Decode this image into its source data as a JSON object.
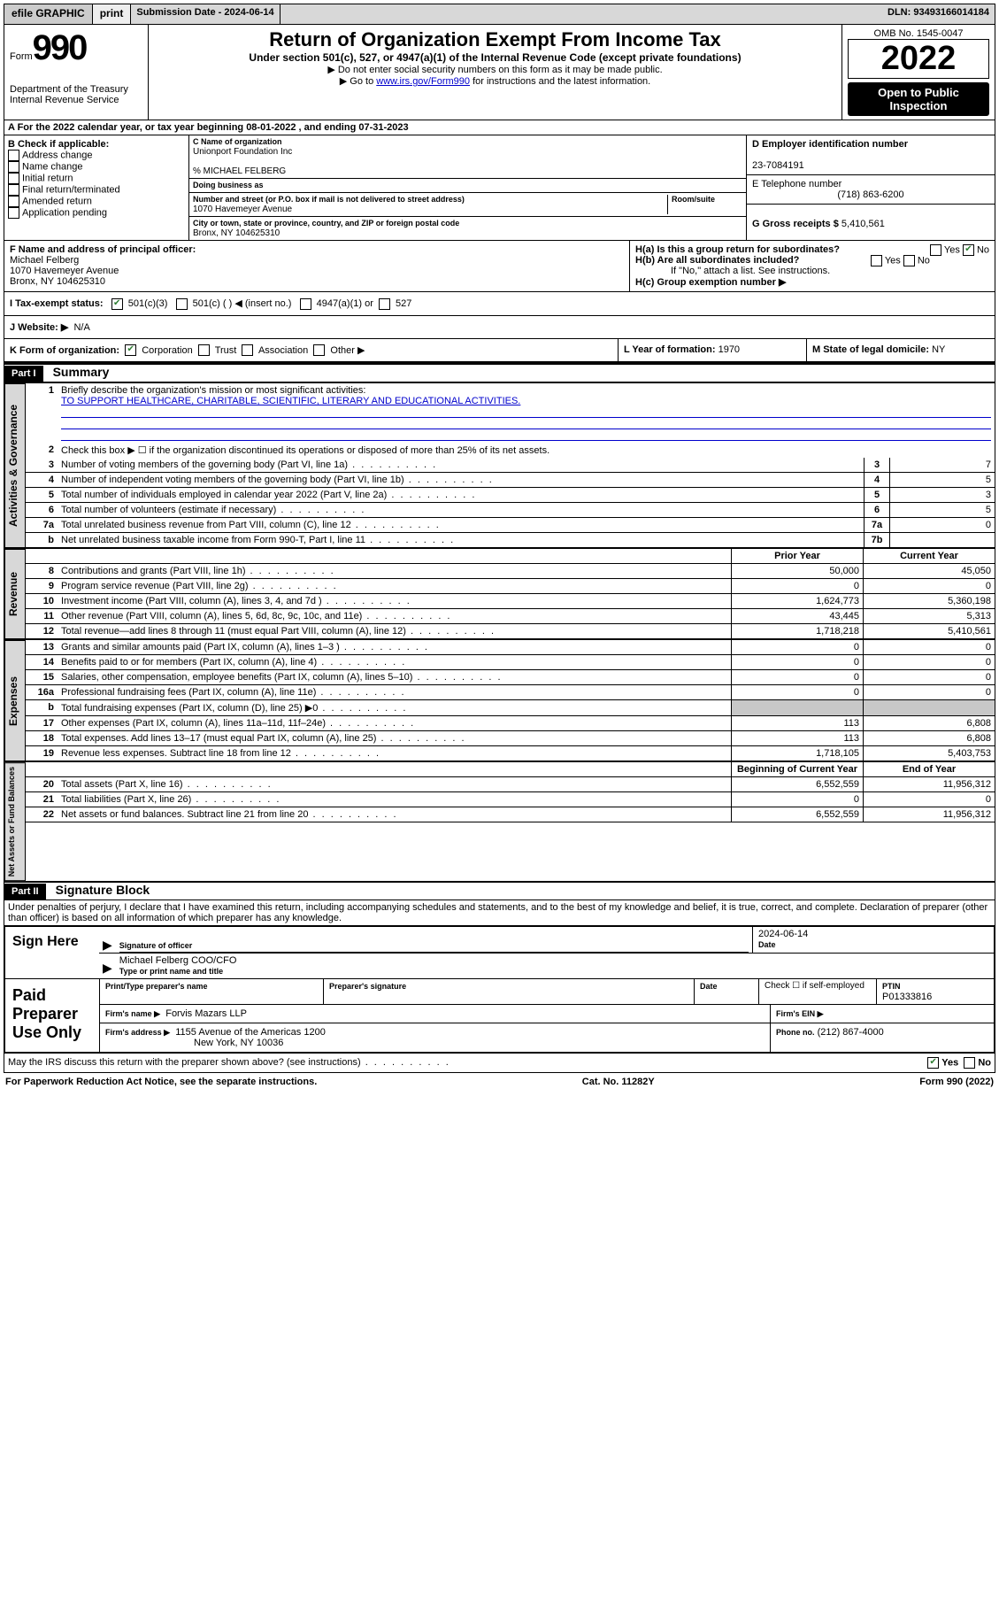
{
  "topbar": {
    "efile": "efile GRAPHIC",
    "print": "print",
    "sub_label": "Submission Date - 2024-06-14",
    "dln": "DLN: 93493166014184"
  },
  "header": {
    "form": "Form",
    "form_no": "990",
    "dept": "Department of the Treasury",
    "irs": "Internal Revenue Service",
    "title": "Return of Organization Exempt From Income Tax",
    "sub": "Under section 501(c), 527, or 4947(a)(1) of the Internal Revenue Code (except private foundations)",
    "note1": "▶ Do not enter social security numbers on this form as it may be made public.",
    "note2_pre": "▶ Go to ",
    "note2_link": "www.irs.gov/Form990",
    "note2_post": " for instructions and the latest information.",
    "omb": "OMB No. 1545-0047",
    "year": "2022",
    "open": "Open to Public Inspection"
  },
  "secA": {
    "line": "A For the 2022 calendar year, or tax year beginning 08-01-2022   , and ending 07-31-2023",
    "b_head": "B Check if applicable:",
    "b_items": [
      "Address change",
      "Name change",
      "Initial return",
      "Final return/terminated",
      "Amended return",
      "Application pending"
    ],
    "c_label": "C Name of organization",
    "c_name": "Unionport Foundation Inc",
    "care_of": "% MICHAEL FELBERG",
    "dba_label": "Doing business as",
    "addr_label": "Number and street (or P.O. box if mail is not delivered to street address)",
    "room_label": "Room/suite",
    "addr": "1070 Havemeyer Avenue",
    "city_label": "City or town, state or province, country, and ZIP or foreign postal code",
    "city": "Bronx, NY  104625310",
    "d_label": "D Employer identification number",
    "d_val": "23-7084191",
    "e_label": "E Telephone number",
    "e_val": "(718) 863-6200",
    "g_label": "G Gross receipts $",
    "g_val": "5,410,561"
  },
  "secFH": {
    "f_label": "F Name and address of principal officer:",
    "f_name": "Michael Felberg",
    "f_addr1": "1070 Havemeyer Avenue",
    "f_addr2": "Bronx, NY  104625310",
    "ha": "H(a)  Is this a group return for subordinates?",
    "hb": "H(b)  Are all subordinates included?",
    "hb_note": "If \"No,\" attach a list. See instructions.",
    "hc": "H(c)  Group exemption number ▶",
    "yes": "Yes",
    "no": "No"
  },
  "secI": {
    "label": "I    Tax-exempt status:",
    "c3": "501(c)(3)",
    "c": "501(c) (  ) ◀ (insert no.)",
    "a1": "4947(a)(1) or",
    "s527": "527"
  },
  "secJ": {
    "label": "J   Website: ▶",
    "val": "N/A"
  },
  "secK": {
    "label": "K Form of organization:",
    "opts": [
      "Corporation",
      "Trust",
      "Association",
      "Other ▶"
    ],
    "l_label": "L Year of formation:",
    "l_val": "1970",
    "m_label": "M State of legal domicile:",
    "m_val": "NY"
  },
  "part1": {
    "bar": "Part I",
    "title": "Summary",
    "q1": "Briefly describe the organization's mission or most significant activities:",
    "mission": "TO SUPPORT HEALTHCARE, CHARITABLE, SCIENTIFIC, LITERARY AND EDUCATIONAL ACTIVITIES.",
    "q2": "Check this box ▶ ☐  if the organization discontinued its operations or disposed of more than 25% of its net assets.",
    "side_gov": "Activities & Governance",
    "side_rev": "Revenue",
    "side_exp": "Expenses",
    "side_net": "Net Assets or Fund Balances",
    "col_prior": "Prior Year",
    "col_curr": "Current Year",
    "col_beg": "Beginning of Current Year",
    "col_end": "End of Year",
    "rows_gov": [
      {
        "n": "3",
        "d": "Number of voting members of the governing body (Part VI, line 1a)",
        "b": "3",
        "v": "7"
      },
      {
        "n": "4",
        "d": "Number of independent voting members of the governing body (Part VI, line 1b)",
        "b": "4",
        "v": "5"
      },
      {
        "n": "5",
        "d": "Total number of individuals employed in calendar year 2022 (Part V, line 2a)",
        "b": "5",
        "v": "3"
      },
      {
        "n": "6",
        "d": "Total number of volunteers (estimate if necessary)",
        "b": "6",
        "v": "5"
      },
      {
        "n": "7a",
        "d": "Total unrelated business revenue from Part VIII, column (C), line 12",
        "b": "7a",
        "v": "0"
      },
      {
        "n": "b",
        "d": "Net unrelated business taxable income from Form 990-T, Part I, line 11",
        "b": "7b",
        "v": ""
      }
    ],
    "rows_rev": [
      {
        "n": "8",
        "d": "Contributions and grants (Part VIII, line 1h)",
        "p": "50,000",
        "c": "45,050"
      },
      {
        "n": "9",
        "d": "Program service revenue (Part VIII, line 2g)",
        "p": "0",
        "c": "0"
      },
      {
        "n": "10",
        "d": "Investment income (Part VIII, column (A), lines 3, 4, and 7d )",
        "p": "1,624,773",
        "c": "5,360,198"
      },
      {
        "n": "11",
        "d": "Other revenue (Part VIII, column (A), lines 5, 6d, 8c, 9c, 10c, and 11e)",
        "p": "43,445",
        "c": "5,313"
      },
      {
        "n": "12",
        "d": "Total revenue—add lines 8 through 11 (must equal Part VIII, column (A), line 12)",
        "p": "1,718,218",
        "c": "5,410,561"
      }
    ],
    "rows_exp": [
      {
        "n": "13",
        "d": "Grants and similar amounts paid (Part IX, column (A), lines 1–3 )",
        "p": "0",
        "c": "0"
      },
      {
        "n": "14",
        "d": "Benefits paid to or for members (Part IX, column (A), line 4)",
        "p": "0",
        "c": "0"
      },
      {
        "n": "15",
        "d": "Salaries, other compensation, employee benefits (Part IX, column (A), lines 5–10)",
        "p": "0",
        "c": "0"
      },
      {
        "n": "16a",
        "d": "Professional fundraising fees (Part IX, column (A), line 11e)",
        "p": "0",
        "c": "0"
      },
      {
        "n": "b",
        "d": "Total fundraising expenses (Part IX, column (D), line 25) ▶0",
        "p": "",
        "c": "",
        "grey": true
      },
      {
        "n": "17",
        "d": "Other expenses (Part IX, column (A), lines 11a–11d, 11f–24e)",
        "p": "113",
        "c": "6,808"
      },
      {
        "n": "18",
        "d": "Total expenses. Add lines 13–17 (must equal Part IX, column (A), line 25)",
        "p": "113",
        "c": "6,808"
      },
      {
        "n": "19",
        "d": "Revenue less expenses. Subtract line 18 from line 12",
        "p": "1,718,105",
        "c": "5,403,753"
      }
    ],
    "rows_net": [
      {
        "n": "20",
        "d": "Total assets (Part X, line 16)",
        "p": "6,552,559",
        "c": "11,956,312"
      },
      {
        "n": "21",
        "d": "Total liabilities (Part X, line 26)",
        "p": "0",
        "c": "0"
      },
      {
        "n": "22",
        "d": "Net assets or fund balances. Subtract line 21 from line 20",
        "p": "6,552,559",
        "c": "11,956,312"
      }
    ]
  },
  "part2": {
    "bar": "Part II",
    "title": "Signature Block",
    "decl": "Under penalties of perjury, I declare that I have examined this return, including accompanying schedules and statements, and to the best of my knowledge and belief, it is true, correct, and complete. Declaration of preparer (other than officer) is based on all information of which preparer has any knowledge.",
    "sign_here": "Sign Here",
    "sig_officer": "Signature of officer",
    "sig_date": "2024-06-14",
    "date_label": "Date",
    "officer_name": "Michael Felberg  COO/CFO",
    "type_label": "Type or print name and title",
    "paid": "Paid Preparer Use Only",
    "prep_name_label": "Print/Type preparer's name",
    "prep_sig_label": "Preparer's signature",
    "check_if": "Check ☐ if self-employed",
    "ptin_label": "PTIN",
    "ptin": "P01333816",
    "firm_name_label": "Firm's name    ▶",
    "firm_name": "Forvis Mazars LLP",
    "firm_ein_label": "Firm's EIN ▶",
    "firm_addr_label": "Firm's address ▶",
    "firm_addr": "1155 Avenue of the Americas 1200",
    "firm_city": "New York, NY  10036",
    "phone_label": "Phone no.",
    "phone": "(212) 867-4000",
    "may_irs": "May the IRS discuss this return with the preparer shown above? (see instructions)"
  },
  "footer": {
    "left": "For Paperwork Reduction Act Notice, see the separate instructions.",
    "mid": "Cat. No. 11282Y",
    "right": "Form 990 (2022)"
  }
}
